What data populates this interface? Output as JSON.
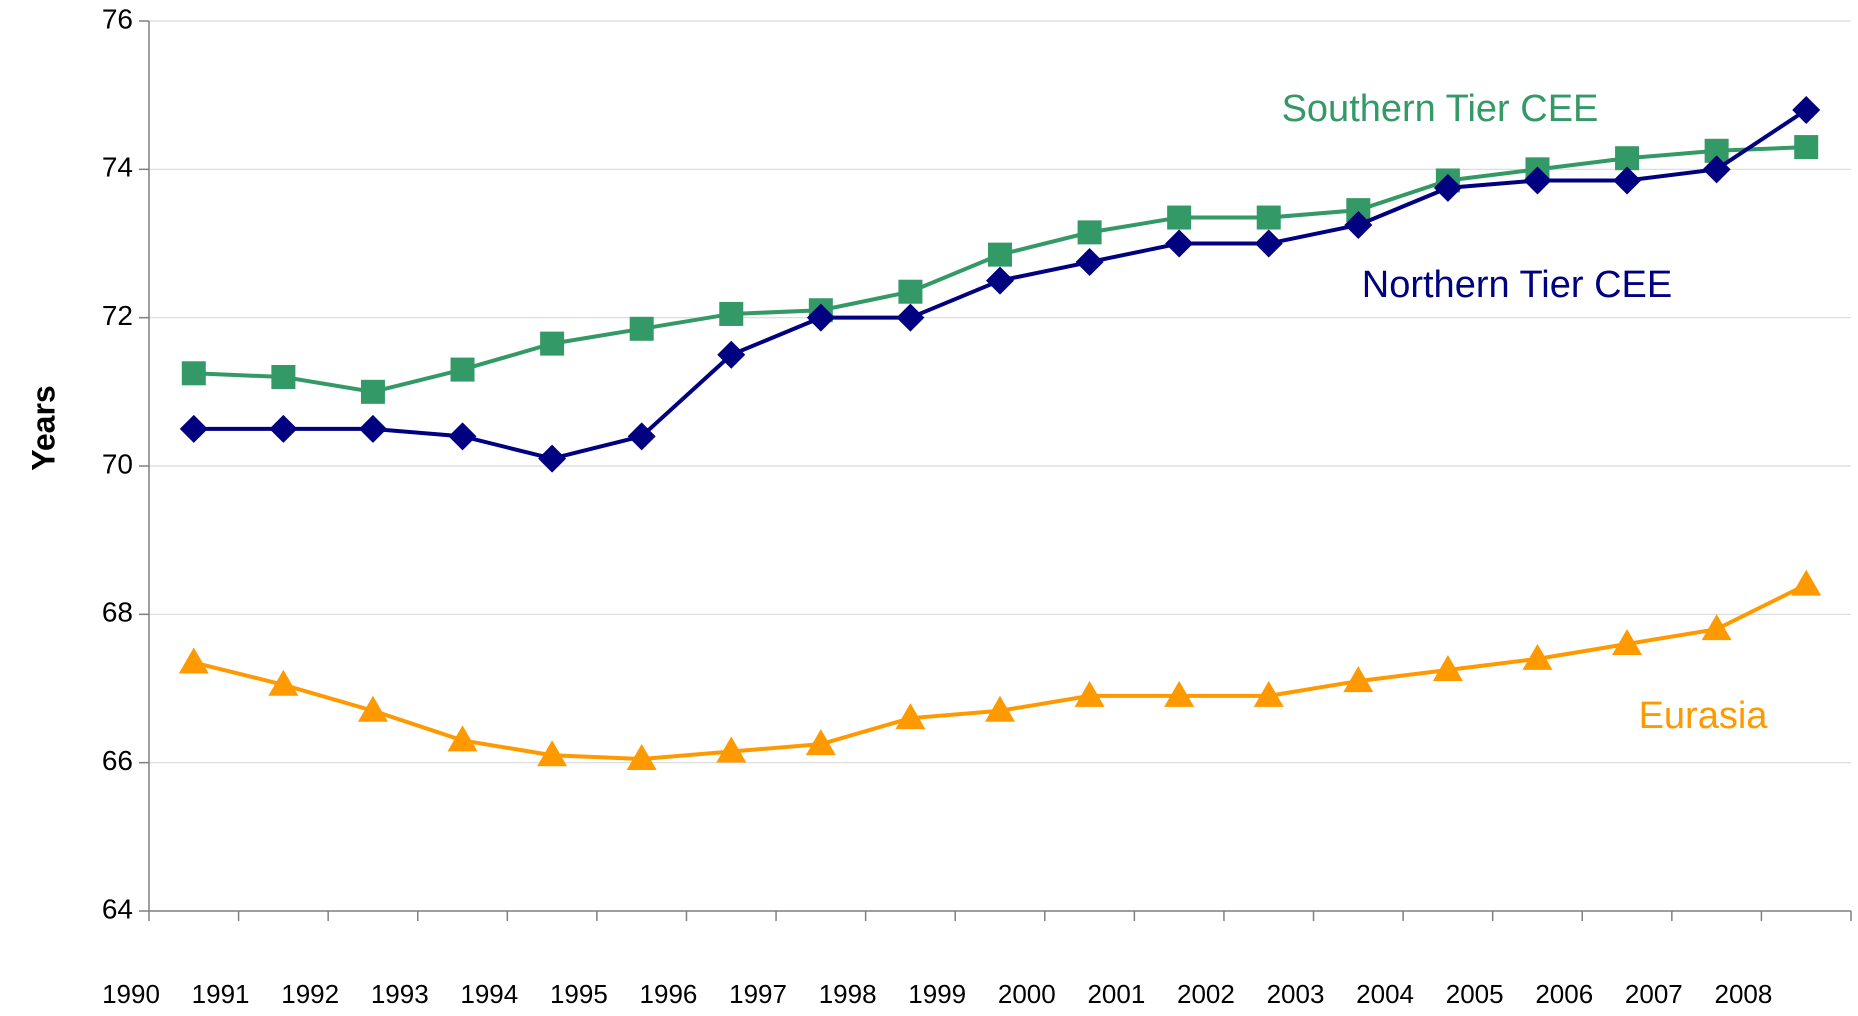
{
  "chart_data": {
    "type": "line",
    "y_label": "Years",
    "categories": [
      "1990",
      "1991",
      "1992",
      "1993",
      "1994",
      "1995",
      "1996",
      "1997",
      "1998",
      "1999",
      "2000",
      "2001",
      "2002",
      "2003",
      "2004",
      "2005",
      "2006",
      "2007",
      "2008"
    ],
    "ylim": [
      64,
      76
    ],
    "yticks": [
      64,
      66,
      68,
      70,
      72,
      74,
      76
    ],
    "grid": true,
    "series": [
      {
        "name": "Southern Tier CEE",
        "color": "#339966",
        "marker": "square",
        "values": [
          71.25,
          71.2,
          71.0,
          71.3,
          71.65,
          71.85,
          72.05,
          72.1,
          72.35,
          72.85,
          73.15,
          73.35,
          73.35,
          73.45,
          73.85,
          74.0,
          74.15,
          74.25,
          74.3
        ]
      },
      {
        "name": "Northern Tier CEE",
        "color": "#000080",
        "marker": "diamond",
        "values": [
          70.5,
          70.5,
          70.5,
          70.4,
          70.1,
          70.4,
          71.5,
          72.0,
          72.0,
          72.5,
          72.75,
          73.0,
          73.0,
          73.25,
          73.75,
          73.85,
          73.85,
          74.0,
          74.8
        ]
      },
      {
        "name": "Eurasia",
        "color": "#ff9900",
        "marker": "triangle",
        "values": [
          67.35,
          67.05,
          66.7,
          66.3,
          66.1,
          66.05,
          66.15,
          66.25,
          66.6,
          66.7,
          66.9,
          66.9,
          66.9,
          67.1,
          67.25,
          67.4,
          67.6,
          67.8,
          68.4
        ]
      }
    ]
  }
}
